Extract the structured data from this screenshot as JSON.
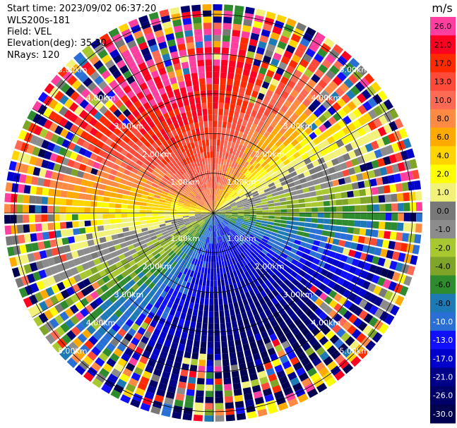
{
  "header": {
    "start_time": "Start time: 2023/09/02 06:37:20",
    "instrument": "WLS200s-181",
    "field": "Field: VEL",
    "elevation": "Elevation(deg): 35.30",
    "nrays": "NRays: 120"
  },
  "chart_data": {
    "type": "heatmap",
    "projection": "polar-ppi",
    "title": "",
    "rings_km": [
      1,
      2,
      3,
      4,
      5
    ],
    "range_labels": [
      "1.00km",
      "2.00km",
      "3.00km",
      "4.00km",
      "5.00km"
    ],
    "max_range_km": 5.25,
    "n_rays": 120,
    "colorbar": {
      "unit": "m/s",
      "ticks": [
        "26.0",
        "21.0",
        "17.0",
        "13.0",
        "10.0",
        "8.0",
        "6.0",
        "4.0",
        "2.0",
        "1.0",
        "0.0",
        "-1.0",
        "-2.0",
        "-4.0",
        "-6.0",
        "-8.0",
        "-10.0",
        "-13.0",
        "-17.0",
        "-21.0",
        "-26.0",
        "-30.0"
      ],
      "colors": [
        "#ff3fa0",
        "#ff0022",
        "#ff2a00",
        "#ff4a3a",
        "#ff6a55",
        "#ff8a44",
        "#ffaa00",
        "#ffd400",
        "#ffff00",
        "#f2f27a",
        "#787878",
        "#8c8c8c",
        "#a8c832",
        "#7ea428",
        "#2e8b2e",
        "#1e7ab4",
        "#2a6fd6",
        "#1010ff",
        "#0000cc",
        "#000088",
        "#00006a",
        "#000050"
      ]
    },
    "wind_direction_deg": 340
  }
}
